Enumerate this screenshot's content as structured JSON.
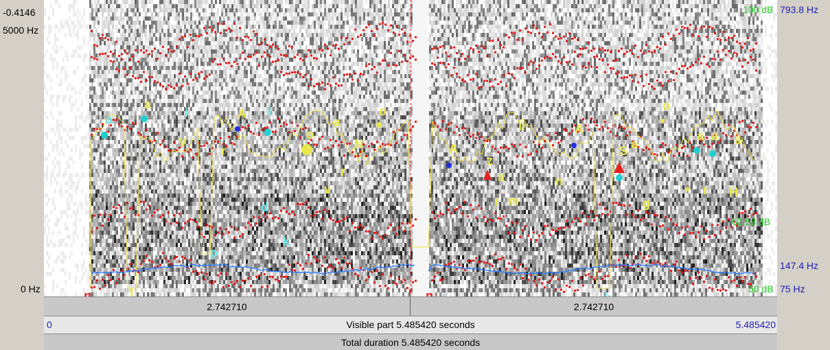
{
  "left_axis": {
    "top_value": "-0.4146",
    "freq_top": "5000 Hz",
    "freq_bottom": "0 Hz"
  },
  "right_axis": {
    "db_top": "100 dB",
    "hz_top": "793.8 Hz",
    "db_mid": "62.58 dB",
    "hz_mid": "147.4 Hz",
    "db_bottom": "50 dB",
    "hz_bottom": "75 Hz"
  },
  "time_row": {
    "left_half": "2.742710",
    "right_half": "2.742710"
  },
  "visible_row": {
    "start": "0",
    "label": "Visible part 5.485420 seconds",
    "end": "5.485420"
  },
  "total_row": {
    "label": "Total duration 5.485420 seconds"
  },
  "annotations": [
    {
      "t": "a",
      "c": "#6fe8e8"
    },
    {
      "t": "a",
      "c": "#e8e84a"
    },
    {
      "t": "i",
      "c": "#6fe8e8"
    },
    {
      "t": "V",
      "c": "#e8e84a"
    },
    {
      "t": "A",
      "c": "#e8e84a"
    },
    {
      "t": "i",
      "c": "#6fe8e8"
    },
    {
      "t": "r",
      "c": "#e8e84a"
    },
    {
      "t": "o",
      "c": "#e8e84a"
    },
    {
      "t": "a",
      "c": "#e8e84a"
    },
    {
      "t": "o",
      "c": "#e8e84a"
    },
    {
      "t": "N",
      "c": "#e8e84a"
    },
    {
      "t": "v",
      "c": "#e8e84a"
    },
    {
      "t": "r",
      "c": "#e8e84a"
    },
    {
      "t": "d",
      "c": "#6fe8e8"
    },
    {
      "t": "k",
      "c": "#6fe8e8"
    },
    {
      "t": "p",
      "c": "#6fe8e8"
    },
    {
      "t": "t",
      "c": "#e8e84a"
    },
    {
      "t": "n",
      "c": "#e82020"
    },
    {
      "t": "A",
      "c": "#e8e84a"
    },
    {
      "t": "z",
      "c": "#e8e84a"
    },
    {
      "t": "a",
      "c": "#e8e84a"
    },
    {
      "t": "r",
      "c": "#e8e84a"
    },
    {
      "t": "m",
      "c": "#e8e84a"
    },
    {
      "t": "ii",
      "c": "#e8e84a"
    },
    {
      "t": "A",
      "c": "#e8e84a"
    },
    {
      "t": "n",
      "c": "#e8e84a"
    },
    {
      "t": "S",
      "c": "#e8e84a"
    },
    {
      "t": "a",
      "c": "#e8e84a"
    },
    {
      "t": "g",
      "c": "#e8e84a"
    },
    {
      "t": "o",
      "c": "#e8e84a"
    },
    {
      "t": "a",
      "c": "#e8e84a"
    },
    {
      "t": "a",
      "c": "#e8e84a"
    },
    {
      "t": "a",
      "c": "#e8e84a"
    },
    {
      "t": "*",
      "c": "#e8e84a"
    },
    {
      "t": "r",
      "c": "#e8e84a"
    },
    {
      "t": "H",
      "c": "#e8e84a"
    },
    {
      "t": "n",
      "c": "#e82020"
    },
    {
      "t": "k",
      "c": "#6fe8e8"
    }
  ]
}
